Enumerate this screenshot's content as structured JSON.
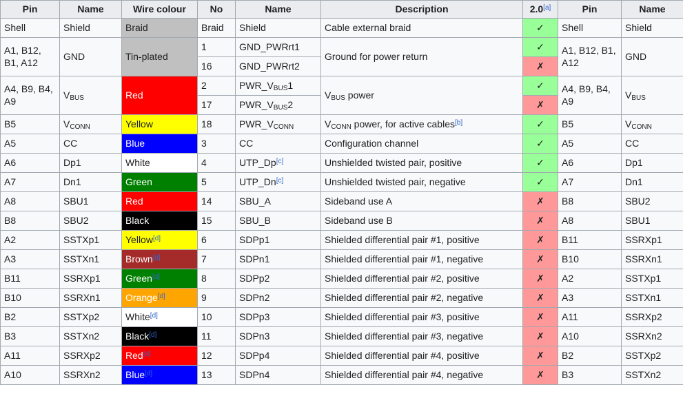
{
  "table": {
    "column_names": [
      "pin-left",
      "name-left",
      "wire-colour",
      "wire-number",
      "wire-name",
      "description",
      "usb2-compat",
      "pin-right",
      "name-right"
    ],
    "headers": [
      {
        "t": "Pin"
      },
      {
        "t": "Name"
      },
      {
        "t": "Wire colour"
      },
      {
        "t": "No"
      },
      {
        "t": "Name"
      },
      {
        "t": "Description"
      },
      {
        "segs": [
          {
            "t": "2.0"
          },
          {
            "t": "[a]",
            "s": "fn"
          }
        ]
      },
      {
        "t": "Pin"
      },
      {
        "t": "Name"
      }
    ],
    "marks": {
      "yes": {
        "glyph": "✓",
        "bg": "#99ff99"
      },
      "no": {
        "glyph": "✗",
        "bg": "#ff9999"
      }
    },
    "colors": {
      "header_bg": "#eaecf0",
      "cell_bg": "#f8f9fa",
      "border": "#a2a9b1",
      "link": "#3366cc",
      "yes_bg": "#99ff99",
      "no_bg": "#ff9999",
      "silver": "#c0c0c0",
      "red": "#ff0000",
      "yellow": "#ffff00",
      "blue": "#0000ff",
      "white": "#ffffff",
      "green": "#008000",
      "black": "#000000",
      "brown": "#a52a2a",
      "orange": "#ffa500"
    },
    "rows": [
      {
        "cells": [
          {
            "col": 0,
            "t": "Shell"
          },
          {
            "col": 1,
            "t": "Shield"
          },
          {
            "col": 2,
            "t": "Braid",
            "bg": "#c0c0c0"
          },
          {
            "col": 3,
            "t": "Braid"
          },
          {
            "col": 4,
            "t": "Shield"
          },
          {
            "col": 5,
            "t": "Cable external braid"
          },
          {
            "col": 6,
            "mark": "yes"
          },
          {
            "col": 7,
            "t": "Shell"
          },
          {
            "col": 8,
            "t": "Shield"
          }
        ]
      },
      {
        "cells": [
          {
            "col": 0,
            "t": "A1, B12, B1, A12",
            "rs": 2
          },
          {
            "col": 1,
            "t": "GND",
            "rs": 2
          },
          {
            "col": 2,
            "t": "Tin-plated",
            "bg": "#c0c0c0",
            "rs": 2
          },
          {
            "col": 3,
            "t": "1"
          },
          {
            "col": 4,
            "t": "GND_PWRrt1"
          },
          {
            "col": 5,
            "t": "Ground for power return",
            "rs": 2
          },
          {
            "col": 6,
            "mark": "yes"
          },
          {
            "col": 7,
            "t": "A1, B12, B1, A12",
            "rs": 2
          },
          {
            "col": 8,
            "t": "GND",
            "rs": 2
          }
        ]
      },
      {
        "cells": [
          {
            "col": 3,
            "t": "16"
          },
          {
            "col": 4,
            "t": "GND_PWRrt2"
          },
          {
            "col": 6,
            "mark": "no"
          }
        ]
      },
      {
        "cells": [
          {
            "col": 0,
            "t": "A4, B9, B4, A9",
            "rs": 2
          },
          {
            "col": 1,
            "segs": [
              {
                "t": "V"
              },
              {
                "t": "BUS",
                "s": "sub"
              }
            ],
            "rs": 2
          },
          {
            "col": 2,
            "t": "Red",
            "bg": "#ff0000",
            "fg": "#ffffff",
            "rs": 2
          },
          {
            "col": 3,
            "t": "2"
          },
          {
            "col": 4,
            "segs": [
              {
                "t": "PWR_V"
              },
              {
                "t": "BUS",
                "s": "sub"
              },
              {
                "t": "1"
              }
            ]
          },
          {
            "col": 5,
            "segs": [
              {
                "t": "V"
              },
              {
                "t": "BUS",
                "s": "sub"
              },
              {
                "t": " power"
              }
            ],
            "rs": 2
          },
          {
            "col": 6,
            "mark": "yes"
          },
          {
            "col": 7,
            "t": "A4, B9, B4, A9",
            "rs": 2
          },
          {
            "col": 8,
            "segs": [
              {
                "t": "V"
              },
              {
                "t": "BUS",
                "s": "sub"
              }
            ],
            "rs": 2
          }
        ]
      },
      {
        "cells": [
          {
            "col": 3,
            "t": "17"
          },
          {
            "col": 4,
            "segs": [
              {
                "t": "PWR_V"
              },
              {
                "t": "BUS",
                "s": "sub"
              },
              {
                "t": "2"
              }
            ]
          },
          {
            "col": 6,
            "mark": "no"
          }
        ]
      },
      {
        "cells": [
          {
            "col": 0,
            "t": "B5"
          },
          {
            "col": 1,
            "segs": [
              {
                "t": "V"
              },
              {
                "t": "CONN",
                "s": "sub"
              }
            ]
          },
          {
            "col": 2,
            "t": "Yellow",
            "bg": "#ffff00"
          },
          {
            "col": 3,
            "t": "18"
          },
          {
            "col": 4,
            "segs": [
              {
                "t": "PWR_V"
              },
              {
                "t": "CONN",
                "s": "sub"
              }
            ]
          },
          {
            "col": 5,
            "segs": [
              {
                "t": "V"
              },
              {
                "t": "CONN",
                "s": "sub"
              },
              {
                "t": " power, for active cables"
              },
              {
                "t": "[b]",
                "s": "fn"
              }
            ]
          },
          {
            "col": 6,
            "mark": "yes"
          },
          {
            "col": 7,
            "t": "B5"
          },
          {
            "col": 8,
            "segs": [
              {
                "t": "V"
              },
              {
                "t": "CONN",
                "s": "sub"
              }
            ]
          }
        ]
      },
      {
        "cells": [
          {
            "col": 0,
            "t": "A5"
          },
          {
            "col": 1,
            "t": "CC"
          },
          {
            "col": 2,
            "t": "Blue",
            "bg": "#0000ff",
            "fg": "#ffffff"
          },
          {
            "col": 3,
            "t": "3"
          },
          {
            "col": 4,
            "t": "CC"
          },
          {
            "col": 5,
            "t": "Configuration channel"
          },
          {
            "col": 6,
            "mark": "yes"
          },
          {
            "col": 7,
            "t": "A5"
          },
          {
            "col": 8,
            "t": "CC"
          }
        ]
      },
      {
        "cells": [
          {
            "col": 0,
            "t": "A6"
          },
          {
            "col": 1,
            "t": "Dp1"
          },
          {
            "col": 2,
            "t": "White",
            "bg": "#ffffff"
          },
          {
            "col": 3,
            "t": "4"
          },
          {
            "col": 4,
            "segs": [
              {
                "t": "UTP_Dp"
              },
              {
                "t": "[c]",
                "s": "fn"
              }
            ]
          },
          {
            "col": 5,
            "t": "Unshielded twisted pair, positive"
          },
          {
            "col": 6,
            "mark": "yes"
          },
          {
            "col": 7,
            "t": "A6"
          },
          {
            "col": 8,
            "t": "Dp1"
          }
        ]
      },
      {
        "cells": [
          {
            "col": 0,
            "t": "A7"
          },
          {
            "col": 1,
            "t": "Dn1"
          },
          {
            "col": 2,
            "t": "Green",
            "bg": "#008000",
            "fg": "#ffffff"
          },
          {
            "col": 3,
            "t": "5"
          },
          {
            "col": 4,
            "segs": [
              {
                "t": "UTP_Dn"
              },
              {
                "t": "[c]",
                "s": "fn"
              }
            ]
          },
          {
            "col": 5,
            "t": "Unshielded twisted pair, negative"
          },
          {
            "col": 6,
            "mark": "yes"
          },
          {
            "col": 7,
            "t": "A7"
          },
          {
            "col": 8,
            "t": "Dn1"
          }
        ]
      },
      {
        "cells": [
          {
            "col": 0,
            "t": "A8"
          },
          {
            "col": 1,
            "t": "SBU1"
          },
          {
            "col": 2,
            "t": "Red",
            "bg": "#ff0000",
            "fg": "#ffffff"
          },
          {
            "col": 3,
            "t": "14"
          },
          {
            "col": 4,
            "t": "SBU_A"
          },
          {
            "col": 5,
            "t": "Sideband use A"
          },
          {
            "col": 6,
            "mark": "no"
          },
          {
            "col": 7,
            "t": "B8"
          },
          {
            "col": 8,
            "t": "SBU2"
          }
        ]
      },
      {
        "cells": [
          {
            "col": 0,
            "t": "B8"
          },
          {
            "col": 1,
            "t": "SBU2"
          },
          {
            "col": 2,
            "t": "Black",
            "bg": "#000000",
            "fg": "#ffffff"
          },
          {
            "col": 3,
            "t": "15"
          },
          {
            "col": 4,
            "t": "SBU_B"
          },
          {
            "col": 5,
            "t": "Sideband use B"
          },
          {
            "col": 6,
            "mark": "no"
          },
          {
            "col": 7,
            "t": "A8"
          },
          {
            "col": 8,
            "t": "SBU1"
          }
        ]
      },
      {
        "cells": [
          {
            "col": 0,
            "t": "A2"
          },
          {
            "col": 1,
            "t": "SSTXp1"
          },
          {
            "col": 2,
            "segs": [
              {
                "t": "Yellow"
              },
              {
                "t": "[d]",
                "s": "fn"
              }
            ],
            "bg": "#ffff00"
          },
          {
            "col": 3,
            "t": "6"
          },
          {
            "col": 4,
            "t": "SDPp1"
          },
          {
            "col": 5,
            "t": "Shielded differential pair #1, positive"
          },
          {
            "col": 6,
            "mark": "no"
          },
          {
            "col": 7,
            "t": "B11"
          },
          {
            "col": 8,
            "t": "SSRXp1"
          }
        ]
      },
      {
        "cells": [
          {
            "col": 0,
            "t": "A3"
          },
          {
            "col": 1,
            "t": "SSTXn1"
          },
          {
            "col": 2,
            "segs": [
              {
                "t": "Brown"
              },
              {
                "t": "[d]",
                "s": "fn"
              }
            ],
            "bg": "#a52a2a",
            "fg": "#ffffff"
          },
          {
            "col": 3,
            "t": "7"
          },
          {
            "col": 4,
            "t": "SDPn1"
          },
          {
            "col": 5,
            "t": "Shielded differential pair #1, negative"
          },
          {
            "col": 6,
            "mark": "no"
          },
          {
            "col": 7,
            "t": "B10"
          },
          {
            "col": 8,
            "t": "SSRXn1"
          }
        ]
      },
      {
        "cells": [
          {
            "col": 0,
            "t": "B11"
          },
          {
            "col": 1,
            "t": "SSRXp1"
          },
          {
            "col": 2,
            "segs": [
              {
                "t": "Green"
              },
              {
                "t": "[d]",
                "s": "fn"
              }
            ],
            "bg": "#008000",
            "fg": "#ffffff"
          },
          {
            "col": 3,
            "t": "8"
          },
          {
            "col": 4,
            "t": "SDPp2"
          },
          {
            "col": 5,
            "t": "Shielded differential pair #2, positive"
          },
          {
            "col": 6,
            "mark": "no"
          },
          {
            "col": 7,
            "t": "A2"
          },
          {
            "col": 8,
            "t": "SSTXp1"
          }
        ]
      },
      {
        "cells": [
          {
            "col": 0,
            "t": "B10"
          },
          {
            "col": 1,
            "t": "SSRXn1"
          },
          {
            "col": 2,
            "segs": [
              {
                "t": "Orange"
              },
              {
                "t": "[d]",
                "s": "fn"
              }
            ],
            "bg": "#ffa500",
            "fg": "#ffffff"
          },
          {
            "col": 3,
            "t": "9"
          },
          {
            "col": 4,
            "t": "SDPn2"
          },
          {
            "col": 5,
            "t": "Shielded differential pair #2, negative"
          },
          {
            "col": 6,
            "mark": "no"
          },
          {
            "col": 7,
            "t": "A3"
          },
          {
            "col": 8,
            "t": "SSTXn1"
          }
        ]
      },
      {
        "cells": [
          {
            "col": 0,
            "t": "B2"
          },
          {
            "col": 1,
            "t": "SSTXp2"
          },
          {
            "col": 2,
            "segs": [
              {
                "t": "White"
              },
              {
                "t": "[d]",
                "s": "fn"
              }
            ],
            "bg": "#ffffff"
          },
          {
            "col": 3,
            "t": "10"
          },
          {
            "col": 4,
            "t": "SDPp3"
          },
          {
            "col": 5,
            "t": "Shielded differential pair #3, positive"
          },
          {
            "col": 6,
            "mark": "no"
          },
          {
            "col": 7,
            "t": "A11"
          },
          {
            "col": 8,
            "t": "SSRXp2"
          }
        ]
      },
      {
        "cells": [
          {
            "col": 0,
            "t": "B3"
          },
          {
            "col": 1,
            "t": "SSTXn2"
          },
          {
            "col": 2,
            "segs": [
              {
                "t": "Black"
              },
              {
                "t": "[d]",
                "s": "fn"
              }
            ],
            "bg": "#000000",
            "fg": "#ffffff"
          },
          {
            "col": 3,
            "t": "11"
          },
          {
            "col": 4,
            "t": "SDPn3"
          },
          {
            "col": 5,
            "t": "Shielded differential pair #3, negative"
          },
          {
            "col": 6,
            "mark": "no"
          },
          {
            "col": 7,
            "t": "A10"
          },
          {
            "col": 8,
            "t": "SSRXn2"
          }
        ]
      },
      {
        "cells": [
          {
            "col": 0,
            "t": "A11"
          },
          {
            "col": 1,
            "t": "SSRXp2"
          },
          {
            "col": 2,
            "segs": [
              {
                "t": "Red"
              },
              {
                "t": "[d]",
                "s": "fn"
              }
            ],
            "bg": "#ff0000",
            "fg": "#ffffff"
          },
          {
            "col": 3,
            "t": "12"
          },
          {
            "col": 4,
            "t": "SDPp4"
          },
          {
            "col": 5,
            "t": "Shielded differential pair #4, positive"
          },
          {
            "col": 6,
            "mark": "no"
          },
          {
            "col": 7,
            "t": "B2"
          },
          {
            "col": 8,
            "t": "SSTXp2"
          }
        ]
      },
      {
        "cells": [
          {
            "col": 0,
            "t": "A10"
          },
          {
            "col": 1,
            "t": "SSRXn2"
          },
          {
            "col": 2,
            "segs": [
              {
                "t": "Blue"
              },
              {
                "t": "[d]",
                "s": "fn"
              }
            ],
            "bg": "#0000ff",
            "fg": "#ffffff"
          },
          {
            "col": 3,
            "t": "13"
          },
          {
            "col": 4,
            "t": "SDPn4"
          },
          {
            "col": 5,
            "t": "Shielded differential pair #4, negative"
          },
          {
            "col": 6,
            "mark": "no"
          },
          {
            "col": 7,
            "t": "B3"
          },
          {
            "col": 8,
            "t": "SSTXn2"
          }
        ]
      }
    ]
  }
}
